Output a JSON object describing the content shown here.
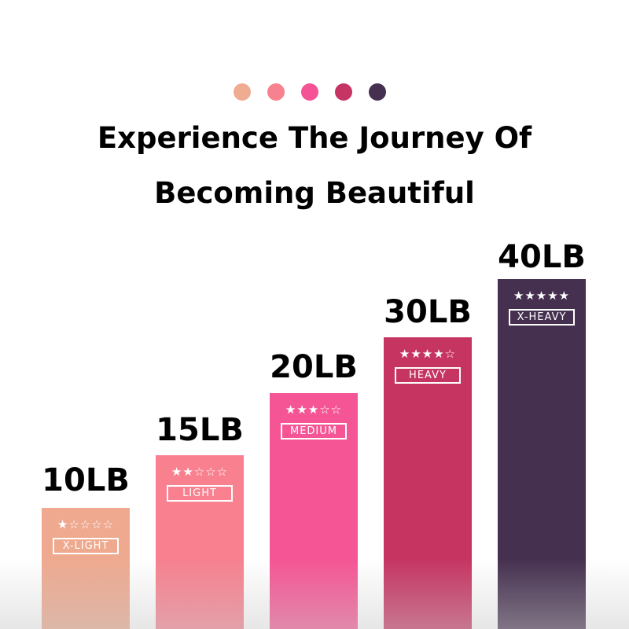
{
  "header": {
    "line1": "Experience The Journey Of",
    "line2": "Becoming Beautiful"
  },
  "dots": [
    "#f0ab93",
    "#f7818f",
    "#f45395",
    "#c53462",
    "#46304f"
  ],
  "bands": [
    {
      "weight": "10LB",
      "level": "X-LIGHT",
      "stars": "★☆☆☆☆",
      "rating": 1,
      "color": "#eea98f"
    },
    {
      "weight": "15LB",
      "level": "LIGHT",
      "stars": "★★☆☆☆",
      "rating": 2,
      "color": "#f8808f"
    },
    {
      "weight": "20LB",
      "level": "MEDIUM",
      "stars": "★★★☆☆",
      "rating": 3,
      "color": "#f55594"
    },
    {
      "weight": "30LB",
      "level": "HEAVY",
      "stars": "★★★★☆",
      "rating": 4,
      "color": "#c63462"
    },
    {
      "weight": "40LB",
      "level": "X-HEAVY",
      "stars": "★★★★★",
      "rating": 5,
      "color": "#45304f"
    }
  ]
}
